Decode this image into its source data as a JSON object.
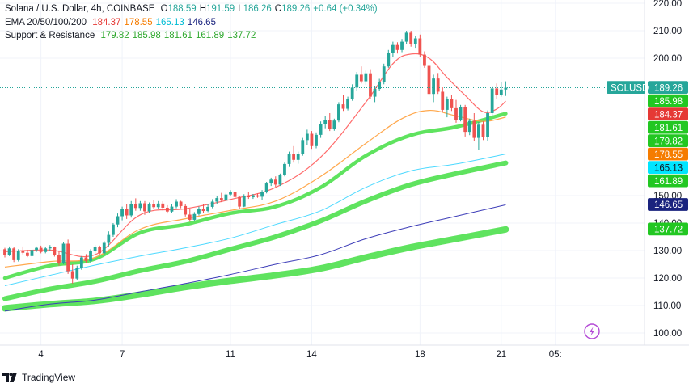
{
  "legend": {
    "title": "Solana / U.S. Dollar, 4h, COINBASE",
    "ohlc": [
      {
        "k": "O",
        "v": "188.59"
      },
      {
        "k": "H",
        "v": "191.59"
      },
      {
        "k": "L",
        "v": "186.26"
      },
      {
        "k": "C",
        "v": "189.26"
      },
      {
        "k": "",
        "v": "+0.64 (+0.34%)"
      }
    ],
    "ema_label": "EMA 20/50/100/200",
    "ema_values": [
      {
        "v": "184.37",
        "color": "#e53935"
      },
      {
        "v": "178.55",
        "color": "#f57c00"
      },
      {
        "v": "165.13",
        "color": "#00bcd4"
      },
      {
        "v": "146.65",
        "color": "#1a237e"
      }
    ],
    "sr_label": "Support & Resistance",
    "sr_values": [
      {
        "v": "179.82",
        "color": "#2ea82e"
      },
      {
        "v": "185.98",
        "color": "#2ea82e"
      },
      {
        "v": "181.61",
        "color": "#2ea82e"
      },
      {
        "v": "161.89",
        "color": "#2ea82e"
      },
      {
        "v": "137.72",
        "color": "#2ea82e"
      }
    ]
  },
  "footer": {
    "brand": "TradingView",
    "logo_icon": "tradingview-logo-icon"
  },
  "colors": {
    "up": "#26a69a",
    "down": "#ef5350",
    "sr": "#2ea82e",
    "sr_label_bg": "#22c722",
    "grid": "#f0f3fa",
    "axis_text": "#131722"
  },
  "chart_data": {
    "type": "candlestick",
    "symbol": "SOLUSD",
    "title": "Solana / U.S. Dollar, 4h, COINBASE",
    "ylim": [
      95,
      222
    ],
    "y_ticks": [
      100,
      110,
      120,
      130,
      140,
      150,
      200,
      210,
      220
    ],
    "y_tick_labels": [
      "100.00",
      "110.00",
      "120.00",
      "130.00",
      "140.00",
      "150.00",
      "200.00",
      "210.00",
      "220.00"
    ],
    "x_tick_labels": [
      {
        "label": "4",
        "bar": 8
      },
      {
        "label": "7",
        "bar": 26
      },
      {
        "label": "11",
        "bar": 50
      },
      {
        "label": "14",
        "bar": 68
      },
      {
        "label": "18",
        "bar": 92
      },
      {
        "label": "21",
        "bar": 110
      },
      {
        "label": "05:",
        "bar": 122
      }
    ],
    "current_price": 189.26,
    "price_labels": [
      {
        "text": "SOLUSD",
        "value": 189.26,
        "kind": "symbol",
        "color": "#26a69a"
      },
      {
        "text": "189.26",
        "value": 189.26,
        "kind": "price",
        "color": "#26a69a"
      },
      {
        "text": "185.98",
        "value": 185.98,
        "kind": "sr",
        "color": "#22c722"
      },
      {
        "text": "184.37",
        "value": 184.37,
        "kind": "ema20",
        "color": "#e53935"
      },
      {
        "text": "181.61",
        "value": 181.61,
        "kind": "sr",
        "color": "#22c722"
      },
      {
        "text": "179.82",
        "value": 179.82,
        "kind": "sr",
        "color": "#22c722"
      },
      {
        "text": "178.55",
        "value": 178.55,
        "kind": "ema50",
        "color": "#f57c00"
      },
      {
        "text": "165.13",
        "value": 165.13,
        "kind": "ema100",
        "color": "#00e5ff"
      },
      {
        "text": "161.89",
        "value": 161.89,
        "kind": "sr",
        "color": "#22c722"
      },
      {
        "text": "146.65",
        "value": 146.65,
        "kind": "ema200",
        "color": "#1a237e"
      },
      {
        "text": "137.72",
        "value": 137.72,
        "kind": "sr",
        "color": "#22c722"
      }
    ],
    "candles": [
      [
        130.5,
        131.0,
        127.5,
        128.5
      ],
      [
        128.5,
        131.5,
        128.0,
        130.8
      ],
      [
        130.8,
        131.2,
        125.8,
        126.5
      ],
      [
        126.5,
        130.5,
        126.0,
        130.0
      ],
      [
        130.0,
        131.5,
        128.6,
        129.2
      ],
      [
        129.2,
        130.3,
        127.6,
        128.0
      ],
      [
        128.0,
        130.5,
        127.5,
        130.2
      ],
      [
        130.2,
        131.5,
        129.5,
        131.0
      ],
      [
        131.0,
        131.8,
        129.0,
        129.5
      ],
      [
        129.5,
        131.2,
        129.0,
        130.8
      ],
      [
        130.8,
        132.0,
        129.8,
        131.2
      ],
      [
        131.2,
        131.5,
        127.8,
        128.5
      ],
      [
        128.5,
        130.0,
        124.5,
        125.5
      ],
      [
        125.5,
        133.0,
        125.0,
        132.5
      ],
      [
        132.5,
        134.0,
        121.5,
        122.5
      ],
      [
        122.5,
        125.0,
        118.0,
        119.8
      ],
      [
        119.8,
        124.5,
        119.3,
        123.8
      ],
      [
        123.8,
        128.0,
        123.0,
        127.5
      ],
      [
        127.5,
        128.7,
        125.4,
        126.2
      ],
      [
        126.2,
        130.5,
        125.5,
        129.7
      ],
      [
        129.7,
        132.0,
        128.8,
        131.2
      ],
      [
        131.2,
        131.8,
        128.5,
        129.0
      ],
      [
        129.0,
        133.5,
        128.5,
        132.8
      ],
      [
        132.8,
        137.0,
        131.5,
        135.7
      ],
      [
        135.7,
        140.0,
        135.0,
        139.5
      ],
      [
        139.5,
        143.5,
        138.5,
        142.5
      ],
      [
        142.5,
        146.0,
        141.0,
        145.0
      ],
      [
        145.0,
        147.0,
        141.5,
        142.8
      ],
      [
        142.8,
        148.0,
        142.0,
        147.0
      ],
      [
        147.0,
        149.0,
        144.5,
        145.5
      ],
      [
        145.5,
        148.0,
        144.5,
        147.2
      ],
      [
        147.2,
        148.0,
        143.0,
        144.3
      ],
      [
        144.3,
        147.5,
        143.8,
        146.8
      ],
      [
        146.8,
        148.5,
        145.0,
        145.8
      ],
      [
        145.8,
        148.0,
        145.2,
        147.1
      ],
      [
        147.1,
        147.9,
        144.6,
        145.6
      ],
      [
        145.6,
        146.5,
        143.5,
        144.2
      ],
      [
        144.2,
        147.0,
        143.7,
        146.0
      ],
      [
        146.0,
        148.7,
        145.4,
        147.8
      ],
      [
        147.8,
        148.1,
        145.4,
        146.2
      ],
      [
        146.2,
        146.8,
        142.4,
        143.1
      ],
      [
        143.1,
        145.0,
        140.5,
        141.2
      ],
      [
        141.2,
        144.0,
        140.8,
        143.3
      ],
      [
        143.3,
        146.0,
        142.8,
        145.2
      ],
      [
        145.2,
        147.0,
        143.6,
        144.4
      ],
      [
        144.4,
        146.8,
        144.0,
        145.9
      ],
      [
        145.9,
        148.7,
        145.4,
        147.8
      ],
      [
        147.8,
        150.0,
        146.9,
        149.1
      ],
      [
        149.1,
        151.0,
        147.6,
        148.2
      ],
      [
        148.2,
        151.0,
        148.0,
        150.4
      ],
      [
        150.4,
        152.0,
        149.8,
        151.2
      ],
      [
        151.2,
        151.5,
        148.8,
        149.5
      ],
      [
        149.5,
        150.0,
        145.0,
        146.0
      ],
      [
        146.0,
        150.5,
        145.8,
        150.0
      ],
      [
        150.0,
        151.2,
        148.8,
        149.4
      ],
      [
        149.4,
        150.6,
        148.8,
        150.1
      ],
      [
        150.1,
        150.8,
        149.2,
        149.6
      ],
      [
        149.6,
        152.0,
        148.3,
        151.3
      ],
      [
        151.3,
        155.0,
        150.8,
        154.4
      ],
      [
        154.4,
        156.5,
        153.5,
        155.8
      ],
      [
        155.8,
        157.0,
        153.2,
        154.0
      ],
      [
        154.0,
        158.0,
        153.5,
        157.4
      ],
      [
        157.4,
        162.0,
        157.0,
        161.5
      ],
      [
        161.5,
        166.0,
        160.4,
        165.2
      ],
      [
        165.2,
        168.0,
        162.0,
        163.0
      ],
      [
        163.0,
        166.0,
        161.6,
        165.0
      ],
      [
        165.0,
        171.0,
        164.5,
        170.2
      ],
      [
        170.2,
        174.0,
        168.5,
        172.5
      ],
      [
        172.5,
        173.5,
        167.0,
        168.0
      ],
      [
        168.0,
        173.0,
        167.2,
        172.1
      ],
      [
        172.1,
        177.0,
        171.0,
        176.0
      ],
      [
        176.0,
        179.0,
        174.5,
        177.5
      ],
      [
        177.5,
        180.0,
        173.5,
        174.2
      ],
      [
        174.2,
        178.0,
        173.6,
        177.3
      ],
      [
        177.3,
        184.0,
        176.7,
        183.2
      ],
      [
        183.2,
        186.5,
        180.8,
        181.6
      ],
      [
        181.6,
        186.0,
        181.0,
        185.0
      ],
      [
        185.0,
        190.5,
        184.5,
        189.3
      ],
      [
        189.3,
        195.0,
        188.0,
        194.0
      ],
      [
        194.0,
        197.0,
        190.8,
        191.6
      ],
      [
        191.6,
        195.5,
        190.3,
        194.5
      ],
      [
        194.5,
        196.0,
        185.0,
        186.0
      ],
      [
        186.0,
        190.0,
        184.0,
        188.8
      ],
      [
        188.8,
        192.5,
        188.0,
        191.2
      ],
      [
        191.2,
        198.0,
        190.5,
        197.0
      ],
      [
        197.0,
        203.0,
        196.5,
        202.0
      ],
      [
        202.0,
        206.0,
        200.5,
        204.8
      ],
      [
        204.8,
        205.8,
        201.7,
        203.0
      ],
      [
        203.0,
        207.0,
        202.2,
        206.0
      ],
      [
        206.0,
        210.0,
        205.0,
        209.3
      ],
      [
        209.3,
        210.0,
        204.2,
        205.2
      ],
      [
        205.2,
        208.0,
        203.5,
        207.2
      ],
      [
        207.2,
        208.6,
        200.5,
        201.3
      ],
      [
        201.3,
        202.5,
        196.5,
        197.2
      ],
      [
        197.2,
        198.0,
        186.0,
        187.0
      ],
      [
        187.0,
        194.0,
        184.0,
        192.6
      ],
      [
        192.6,
        194.6,
        187.0,
        187.8
      ],
      [
        187.8,
        189.4,
        180.3,
        181.2
      ],
      [
        181.2,
        186.0,
        178.5,
        185.0
      ],
      [
        185.0,
        186.5,
        180.8,
        181.8
      ],
      [
        181.8,
        184.8,
        176.5,
        177.6
      ],
      [
        177.6,
        183.0,
        177.0,
        182.1
      ],
      [
        182.1,
        183.0,
        171.5,
        173.2
      ],
      [
        173.2,
        178.0,
        172.0,
        177.2
      ],
      [
        177.2,
        180.0,
        170.0,
        171.0
      ],
      [
        171.0,
        176.8,
        166.5,
        175.8
      ],
      [
        175.8,
        177.0,
        170.2,
        171.2
      ],
      [
        171.2,
        181.0,
        169.8,
        180.0
      ],
      [
        180.0,
        190.0,
        179.0,
        189.0
      ],
      [
        189.0,
        190.8,
        185.2,
        186.6
      ],
      [
        186.6,
        191.2,
        186.0,
        188.6
      ],
      [
        188.6,
        191.59,
        186.26,
        189.26
      ]
    ],
    "ema_series": [
      {
        "name": "EMA 20",
        "value_now": 184.37,
        "color": "#ff6b6b",
        "width": 1.2,
        "points": [
          [
            0,
            129.6
          ],
          [
            10,
            130.2
          ],
          [
            20,
            128.5
          ],
          [
            30,
            143.0
          ],
          [
            40,
            145.2
          ],
          [
            50,
            148.6
          ],
          [
            60,
            153.0
          ],
          [
            70,
            164.0
          ],
          [
            80,
            184.0
          ],
          [
            86,
            198.0
          ],
          [
            90,
            201.5
          ],
          [
            94,
            200.0
          ],
          [
            98,
            193.0
          ],
          [
            102,
            186.5
          ],
          [
            106,
            180.5
          ],
          [
            109,
            181.5
          ],
          [
            111,
            184.37
          ]
        ]
      },
      {
        "name": "EMA 50",
        "value_now": 178.55,
        "color": "#ffa84d",
        "width": 1.2,
        "points": [
          [
            0,
            124.0
          ],
          [
            10,
            126.0
          ],
          [
            20,
            127.5
          ],
          [
            30,
            137.8
          ],
          [
            40,
            141.6
          ],
          [
            50,
            144.6
          ],
          [
            60,
            148.0
          ],
          [
            70,
            157.0
          ],
          [
            80,
            169.0
          ],
          [
            88,
            178.0
          ],
          [
            94,
            181.0
          ],
          [
            100,
            179.0
          ],
          [
            106,
            177.0
          ],
          [
            111,
            178.55
          ]
        ]
      },
      {
        "name": "EMA 100",
        "value_now": 165.13,
        "color": "#4dd9ff",
        "width": 1.0,
        "points": [
          [
            0,
            117.2
          ],
          [
            10,
            121.0
          ],
          [
            20,
            124.7
          ],
          [
            30,
            128.0
          ],
          [
            40,
            131.0
          ],
          [
            50,
            134.5
          ],
          [
            60,
            139.5
          ],
          [
            70,
            144.5
          ],
          [
            80,
            153.0
          ],
          [
            90,
            159.0
          ],
          [
            100,
            161.5
          ],
          [
            111,
            165.13
          ]
        ]
      },
      {
        "name": "EMA 200",
        "value_now": 146.65,
        "color": "#3d3db8",
        "width": 1.0,
        "points": [
          [
            0,
            108.0
          ],
          [
            10,
            110.5
          ],
          [
            20,
            112.0
          ],
          [
            30,
            115.0
          ],
          [
            40,
            118.0
          ],
          [
            50,
            121.3
          ],
          [
            60,
            125.0
          ],
          [
            70,
            128.5
          ],
          [
            80,
            134.3
          ],
          [
            90,
            138.7
          ],
          [
            100,
            142.5
          ],
          [
            111,
            146.65
          ]
        ]
      }
    ],
    "sr_curves": [
      {
        "name": "S/R 179.82",
        "value_now": 179.82,
        "points": [
          [
            0,
            120.0
          ],
          [
            10,
            124.5
          ],
          [
            20,
            127.0
          ],
          [
            30,
            136.5
          ],
          [
            40,
            139.5
          ],
          [
            50,
            143.6
          ],
          [
            60,
            146.0
          ],
          [
            70,
            153.0
          ],
          [
            80,
            164.5
          ],
          [
            90,
            172.0
          ],
          [
            100,
            175.0
          ],
          [
            111,
            179.82
          ]
        ]
      },
      {
        "name": "S/R 161.89",
        "value_now": 161.89,
        "points": [
          [
            0,
            112.5
          ],
          [
            10,
            116.0
          ],
          [
            20,
            118.8
          ],
          [
            30,
            122.7
          ],
          [
            40,
            126.0
          ],
          [
            50,
            130.5
          ],
          [
            60,
            135.0
          ],
          [
            70,
            140.8
          ],
          [
            80,
            148.0
          ],
          [
            90,
            154.0
          ],
          [
            100,
            158.0
          ],
          [
            111,
            161.89
          ]
        ]
      },
      {
        "name": "S/R 137.72",
        "value_now": 137.72,
        "points": [
          [
            0,
            109.0
          ],
          [
            10,
            110.5
          ],
          [
            20,
            111.7
          ],
          [
            30,
            114.0
          ],
          [
            40,
            116.7
          ],
          [
            50,
            119.0
          ],
          [
            60,
            121.0
          ],
          [
            70,
            123.5
          ],
          [
            80,
            127.5
          ],
          [
            90,
            131.2
          ],
          [
            100,
            134.3
          ],
          [
            111,
            137.72
          ]
        ]
      }
    ],
    "reference_line": {
      "value": 189.26,
      "style": "dotted",
      "color": "#26a69a"
    }
  }
}
